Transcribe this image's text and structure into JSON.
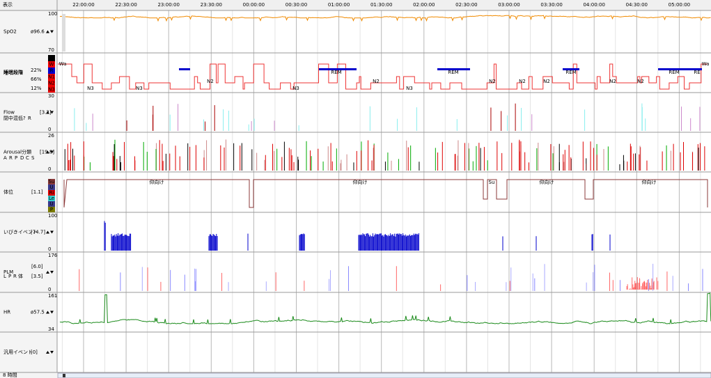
{
  "header": {
    "menu": "表示",
    "times": [
      "22:00:00",
      "22:30:00",
      "23:00:00",
      "23:30:00",
      "00:00:00",
      "00:30:00",
      "01:00:00",
      "01:30:00",
      "02:00:00",
      "02:30:00",
      "03:00:00",
      "03:30:00",
      "04:00:00",
      "04:30:00",
      "05:00:00"
    ]
  },
  "channels": [
    {
      "name": "SpO2",
      "value": "ø96.6",
      "scale": [
        "100",
        "70"
      ]
    },
    {
      "name": "睡眠段階",
      "percents": [
        "22%",
        "66%",
        "12%"
      ],
      "legend": [
        "A",
        "W",
        "R",
        "N1",
        "N2",
        "N3"
      ]
    },
    {
      "name": "Flow",
      "value": "[3.2]",
      "legend": [
        "閉",
        "中",
        "混",
        "低",
        "?",
        "R"
      ],
      "scale": [
        "30",
        "0"
      ]
    },
    {
      "name": "Arousal分類",
      "value": "[19.8]",
      "legend": [
        "A",
        "R",
        "P",
        "D",
        "C",
        "S"
      ],
      "scale": [
        "26",
        "0"
      ]
    },
    {
      "name": "体位",
      "value": "[1.1]",
      "legend": [
        "Su",
        "U",
        "Ri",
        "Le",
        "U",
        "P"
      ]
    },
    {
      "name": "いびきイベント",
      "value": "[74.7]",
      "scale": [
        "100",
        "0"
      ]
    },
    {
      "name": "PLM",
      "values": [
        "[6.0]",
        "[3.5]"
      ],
      "legend": [
        "L",
        "P",
        "R",
        "体"
      ],
      "scale": [
        "176",
        "0"
      ]
    },
    {
      "name": "HR",
      "value": "ø57.5",
      "scale": [
        "161",
        "34"
      ]
    },
    {
      "name": "汎用イベント",
      "value": "[0]"
    }
  ],
  "stage_labels": [
    "Wa",
    "N3",
    "N3",
    "N2",
    "N3",
    "REM",
    "N2",
    "N3",
    "REM",
    "N2",
    "N2",
    "N2",
    "REM",
    "N2",
    "N2",
    "REM",
    "RE",
    "Wa"
  ],
  "position_labels": [
    "仰向け",
    "仰向け",
    "Su",
    "仰向け",
    "仰向け"
  ],
  "footer": "8 時間"
}
